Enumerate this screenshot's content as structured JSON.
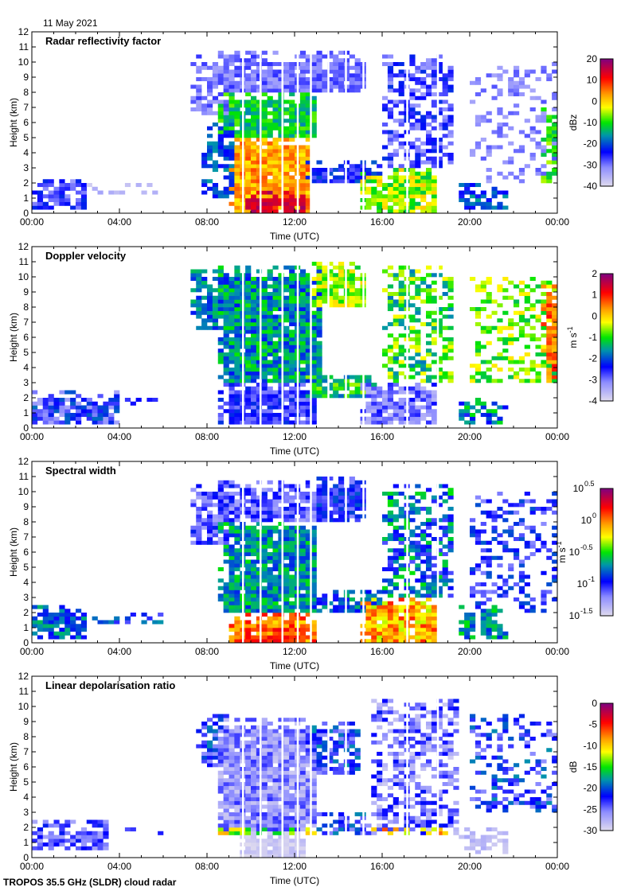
{
  "header": {
    "date": "11 May 2021"
  },
  "footer": {
    "instrument": "TROPOS 35.5 GHz (SLDR) cloud radar"
  },
  "chart_data": [
    {
      "type": "heatmap",
      "title": "Radar reflectivity factor",
      "xlabel": "Time (UTC)",
      "ylabel": "Height (km)",
      "xlim_hours": [
        0,
        24
      ],
      "ylim": [
        0,
        12
      ],
      "x_tick_labels": [
        "00:00",
        "04:00",
        "08:00",
        "12:00",
        "16:00",
        "20:00",
        "00:00"
      ],
      "y_tick_labels": [
        "0",
        "1",
        "2",
        "3",
        "4",
        "5",
        "6",
        "7",
        "8",
        "9",
        "10",
        "11",
        "12"
      ],
      "colorbar": {
        "unit": "dBz",
        "unit_sup": "",
        "range": [
          -40,
          20
        ],
        "tick_labels": [
          "20",
          "10",
          "0",
          "-10",
          "-20",
          "-30",
          "-40"
        ],
        "tick_sups": [
          "",
          "",
          "",
          "",
          "",
          "",
          ""
        ]
      },
      "regions": [
        [
          0,
          2.6,
          0.3,
          2.3,
          -27,
          6,
          0.8
        ],
        [
          2.6,
          6,
          1.2,
          2,
          -36,
          3,
          0.5
        ],
        [
          7.3,
          9,
          6.5,
          10.6,
          -30,
          4,
          0.7
        ],
        [
          8.5,
          13.2,
          8,
          10.7,
          -30,
          4,
          0.9
        ],
        [
          8.6,
          13,
          5,
          8,
          -12,
          5,
          0.95
        ],
        [
          9,
          12.8,
          0,
          5,
          3,
          5,
          0.95
        ],
        [
          9.8,
          12.5,
          0,
          1.5,
          15,
          3,
          0.95
        ],
        [
          7.8,
          9.2,
          1,
          6,
          -20,
          5,
          0.6
        ],
        [
          12.8,
          15.2,
          8,
          10.7,
          -29,
          3,
          0.85
        ],
        [
          12.5,
          16,
          2,
          3.5,
          -24,
          5,
          0.8
        ],
        [
          15,
          18.6,
          0,
          3,
          -6,
          7,
          0.85
        ],
        [
          16,
          19.3,
          3,
          10.5,
          -27,
          6,
          0.55
        ],
        [
          19.5,
          21.8,
          0.3,
          2,
          -20,
          5,
          0.6
        ],
        [
          20,
          24,
          2,
          10,
          -31,
          3,
          0.3
        ],
        [
          23.3,
          24,
          2,
          7,
          -10,
          5,
          0.6
        ]
      ]
    },
    {
      "type": "heatmap",
      "title": "Doppler velocity",
      "xlabel": "Time (UTC)",
      "ylabel": "Height (km)",
      "xlim_hours": [
        0,
        24
      ],
      "ylim": [
        0,
        12
      ],
      "x_tick_labels": [
        "00:00",
        "04:00",
        "08:00",
        "12:00",
        "16:00",
        "20:00",
        "00:00"
      ],
      "y_tick_labels": [
        "0",
        "1",
        "2",
        "3",
        "4",
        "5",
        "6",
        "7",
        "8",
        "9",
        "10",
        "11",
        "12"
      ],
      "colorbar": {
        "unit": "m s",
        "unit_sup": "-1",
        "range": [
          -4,
          2
        ],
        "tick_labels": [
          "2",
          "1",
          "0",
          "-1",
          "-2",
          "-3",
          "-4"
        ],
        "tick_sups": [
          "",
          "",
          "",
          "",
          "",
          "",
          ""
        ]
      },
      "regions": [
        [
          0,
          4,
          0.3,
          2.5,
          -2.6,
          0.8,
          0.8
        ],
        [
          4,
          6,
          1.5,
          2,
          -2.5,
          0.5,
          0.6
        ],
        [
          7.3,
          9,
          6.5,
          10.6,
          -1.8,
          0.5,
          0.7
        ],
        [
          8.5,
          13.2,
          3,
          10.7,
          -1.6,
          0.7,
          0.95
        ],
        [
          8.6,
          13,
          0.3,
          3,
          -2.6,
          0.5,
          0.95
        ],
        [
          12.8,
          15.2,
          8,
          10.9,
          -0.6,
          0.6,
          0.85
        ],
        [
          12.5,
          16,
          2,
          3.5,
          -1.2,
          0.7,
          0.8
        ],
        [
          15,
          18.6,
          0.3,
          3,
          -3,
          0.6,
          0.85
        ],
        [
          16,
          19.3,
          3,
          10.8,
          -1,
          0.8,
          0.55
        ],
        [
          19.5,
          21.8,
          0.3,
          2,
          -1.8,
          0.8,
          0.6
        ],
        [
          20,
          24,
          3,
          10,
          -0.7,
          0.6,
          0.45
        ],
        [
          23.3,
          24,
          3,
          9.5,
          0.6,
          0.5,
          0.7
        ]
      ]
    },
    {
      "type": "heatmap",
      "title": "Spectral width",
      "xlabel": "Time (UTC)",
      "ylabel": "Height (km)",
      "xlim_hours": [
        0,
        24
      ],
      "ylim": [
        0,
        12
      ],
      "x_tick_labels": [
        "00:00",
        "04:00",
        "08:00",
        "12:00",
        "16:00",
        "20:00",
        "00:00"
      ],
      "y_tick_labels": [
        "0",
        "1",
        "2",
        "3",
        "4",
        "5",
        "6",
        "7",
        "8",
        "9",
        "10",
        "11",
        "12"
      ],
      "colorbar": {
        "unit": "m s",
        "unit_sup": "-1",
        "range": [
          -1.5,
          0.5
        ],
        "tick_labels": [
          "10",
          "10",
          "10",
          "10",
          "10"
        ],
        "tick_sups": [
          "0.5",
          "0",
          "-0.5",
          "-1",
          "-1.5"
        ]
      },
      "regions": [
        [
          0,
          2.6,
          0.3,
          2.6,
          -0.8,
          0.2,
          0.8
        ],
        [
          2.6,
          6,
          1.3,
          2.1,
          -0.9,
          0.2,
          0.5
        ],
        [
          7.3,
          9,
          6.5,
          10.6,
          -1.1,
          0.2,
          0.7
        ],
        [
          8.5,
          13.2,
          8,
          10.7,
          -1.1,
          0.2,
          0.9
        ],
        [
          8.6,
          13,
          2,
          8,
          -0.7,
          0.2,
          0.95
        ],
        [
          9,
          13,
          0,
          2,
          0,
          0.2,
          0.95
        ],
        [
          9.8,
          12.5,
          0,
          1,
          0.15,
          0.1,
          0.95
        ],
        [
          12.8,
          15.2,
          8,
          10.9,
          -1,
          0.2,
          0.85
        ],
        [
          12.5,
          16,
          2,
          3.5,
          -0.8,
          0.2,
          0.8
        ],
        [
          15,
          18.6,
          0,
          3,
          -0.1,
          0.25,
          0.85
        ],
        [
          16,
          19.3,
          3,
          10.5,
          -0.8,
          0.3,
          0.55
        ],
        [
          19.5,
          21.8,
          0.3,
          2.5,
          -0.7,
          0.2,
          0.6
        ],
        [
          20,
          24,
          2,
          10,
          -1,
          0.2,
          0.35
        ]
      ]
    },
    {
      "type": "heatmap",
      "title": "Linear depolarisation ratio",
      "xlabel": "Time (UTC)",
      "ylabel": "Height (km)",
      "xlim_hours": [
        0,
        24
      ],
      "ylim": [
        0,
        12
      ],
      "x_tick_labels": [
        "00:00",
        "04:00",
        "08:00",
        "12:00",
        "16:00",
        "20:00",
        "00:00"
      ],
      "y_tick_labels": [
        "0",
        "1",
        "2",
        "3",
        "4",
        "5",
        "6",
        "7",
        "8",
        "9",
        "10",
        "11",
        "12"
      ],
      "colorbar": {
        "unit": "dB",
        "unit_sup": "",
        "range": [
          -30,
          0
        ],
        "tick_labels": [
          "0",
          "-5",
          "-10",
          "-15",
          "-20",
          "-25",
          "-30"
        ],
        "tick_sups": [
          "",
          "",
          "",
          "",
          "",
          "",
          ""
        ]
      },
      "regions": [
        [
          0,
          3.5,
          0.5,
          2.4,
          -24,
          3,
          0.8
        ],
        [
          3.5,
          6,
          1.5,
          2,
          -24,
          2,
          0.4
        ],
        [
          7.5,
          9,
          6,
          9.5,
          -22,
          4,
          0.6
        ],
        [
          8.5,
          13,
          1.8,
          9.2,
          -26,
          3,
          0.95
        ],
        [
          9.5,
          12.5,
          0,
          1.8,
          -29,
          1,
          0.95
        ],
        [
          8.6,
          13,
          1.5,
          2,
          -12,
          4,
          0.9
        ],
        [
          12.5,
          15,
          5.5,
          9,
          -22,
          4,
          0.7
        ],
        [
          13,
          15.5,
          1.5,
          3,
          -22,
          4,
          0.6
        ],
        [
          15.5,
          19.5,
          1.5,
          10.5,
          -25,
          4,
          0.55
        ],
        [
          15.5,
          19,
          1.5,
          2,
          -10,
          4,
          0.9
        ],
        [
          19.5,
          21.8,
          0.3,
          2,
          -28,
          1,
          0.6
        ],
        [
          20,
          24,
          3,
          9.5,
          -22,
          4,
          0.35
        ]
      ]
    }
  ],
  "data_gaps_hours": [
    9.6,
    10.4,
    11.4,
    12.1,
    12.7,
    13.5,
    14.3,
    15.1,
    17.1,
    18.5
  ]
}
